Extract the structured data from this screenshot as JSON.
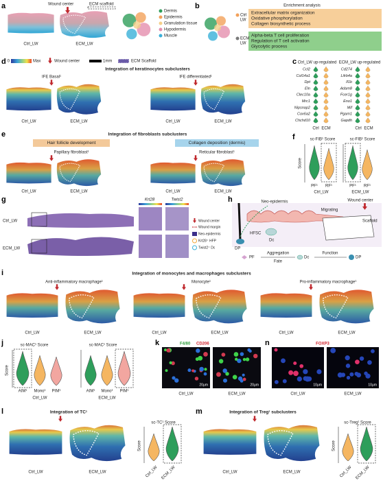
{
  "a": {
    "label": "a",
    "wound_center": "Wound center",
    "ecm_scaffold": "ECM scaffold",
    "ctrl": "Ctrl_LW",
    "ecm": "ECM_LW",
    "legend": [
      "Dermis",
      "Epidermis",
      "Granulation tissue",
      "Hypodermis",
      "Muscle"
    ]
  },
  "b": {
    "label": "b",
    "title": "Enrichment analysis",
    "ctrl": [
      "Ctrl",
      "LW"
    ],
    "ecm": [
      "ECM",
      "LW"
    ],
    "ctrl_terms": [
      "Extracellular matrix organization",
      "Oxidative phosphorylation",
      "Collagen biosynthetic process"
    ],
    "ecm_terms": [
      "Alpha-beta T cell proliferation",
      "Regulation of T cell activation",
      "Glycolytic process"
    ]
  },
  "c": {
    "label": "c",
    "ctrl_title": "Ctrl_LW up-regulated",
    "ctrl_genes": [
      "Ccl2",
      "Col14a1",
      "Dpt",
      "Eln",
      "Clec10a",
      "Mrc1",
      "Nipsnap2",
      "Cox6a2",
      "Chchd10"
    ],
    "ecm_title": "ECM_LW up-regulated",
    "ecm_genes": [
      "Cd274",
      "Lilrb4a",
      "Il1b",
      "Adam8",
      "Fcer1g",
      "Eno1",
      "Mif",
      "Pgam1",
      "Gapdh"
    ],
    "groups": [
      "Ctrl",
      "ECM"
    ]
  },
  "d": {
    "label": "d",
    "scale_min": 0,
    "scale_max": "Max",
    "wound_center": "Wound center",
    "scale_bar": "1mm",
    "ecm_scaffold": "ECM Scaffold",
    "title": "Integration of keratinocytes subclusters",
    "maps": [
      "IFE Basal¹",
      "IFE differentiated¹"
    ],
    "ctrl": "Ctrl_LW",
    "ecm": "ECM_LW"
  },
  "e": {
    "label": "e",
    "title": "Integration of fibroblasts subclusters",
    "terms": [
      "Hair follicle development",
      "Collagen deposition (dermis)"
    ],
    "maps": [
      "Papillary fibroblast¹",
      "Reticular fibroblast¹"
    ],
    "ctrl": "Ctrl_LW",
    "ecm": "ECM_LW"
  },
  "f": {
    "label": "f",
    "score": "sc-FIB¹ Score",
    "y_label": "Score",
    "groups": [
      "PF¹",
      "RF¹"
    ],
    "samples": [
      "Ctrl_LW",
      "ECM_LW"
    ]
  },
  "g": {
    "label": "g",
    "genes": [
      "Krt28",
      "Twist2"
    ],
    "samples": [
      "Ctrl_LW",
      "ECM_LW"
    ],
    "legend": [
      "Wound center",
      "Wound margin",
      "Neo-epidermis",
      "Krt28⁺ HFP",
      "Twist2⁺ Dc"
    ]
  },
  "h": {
    "label": "h",
    "neo": "Neo-epidermis",
    "wound_center": "Wound center",
    "migrating": "Migrating",
    "scaffold": "Scaffold",
    "hfsc": "HFSC",
    "dc": "Dc",
    "dp": "DP",
    "pf": "PF",
    "aggregation": "Aggregation",
    "fate": "Fate",
    "function": "Function"
  },
  "i": {
    "label": "i",
    "title": "Integration of monocytes and macrophages subclusters",
    "maps": [
      "Anti-inflammatory macrophage¹",
      "Monocyte¹",
      "Pro-inflammatory macrophage¹"
    ],
    "ctrl": "Ctrl_LW",
    "ecm": "ECM_LW"
  },
  "j": {
    "label": "j",
    "score": "sc-MAC¹ Score",
    "y_label": "Score",
    "groups": [
      "AIM¹",
      "Mono¹",
      "PIM¹"
    ],
    "samples": [
      "Ctrl_LW",
      "ECM_LW"
    ]
  },
  "k": {
    "label": "k",
    "stains": [
      "F4/80",
      "CD206"
    ],
    "scale": "20μm",
    "samples": [
      "Ctrl_LW",
      "ECM_LW"
    ]
  },
  "n": {
    "label": "n",
    "stain": "FOXP3",
    "scale": "10μm",
    "samples": [
      "Ctrl_LW",
      "ECM_LW"
    ]
  },
  "l": {
    "label": "l",
    "title": "Integration of TC¹",
    "score": "sc-TC¹ Score",
    "y_label": "Score",
    "samples": [
      "Ctrl_LW",
      "ECM_LW"
    ]
  },
  "m": {
    "label": "m",
    "title": "Integration of Treg¹ subclusters",
    "score": "sc-Treg¹ Score",
    "y_label": "Score",
    "samples": [
      "Ctrl_LW",
      "ECM_LW"
    ]
  }
}
